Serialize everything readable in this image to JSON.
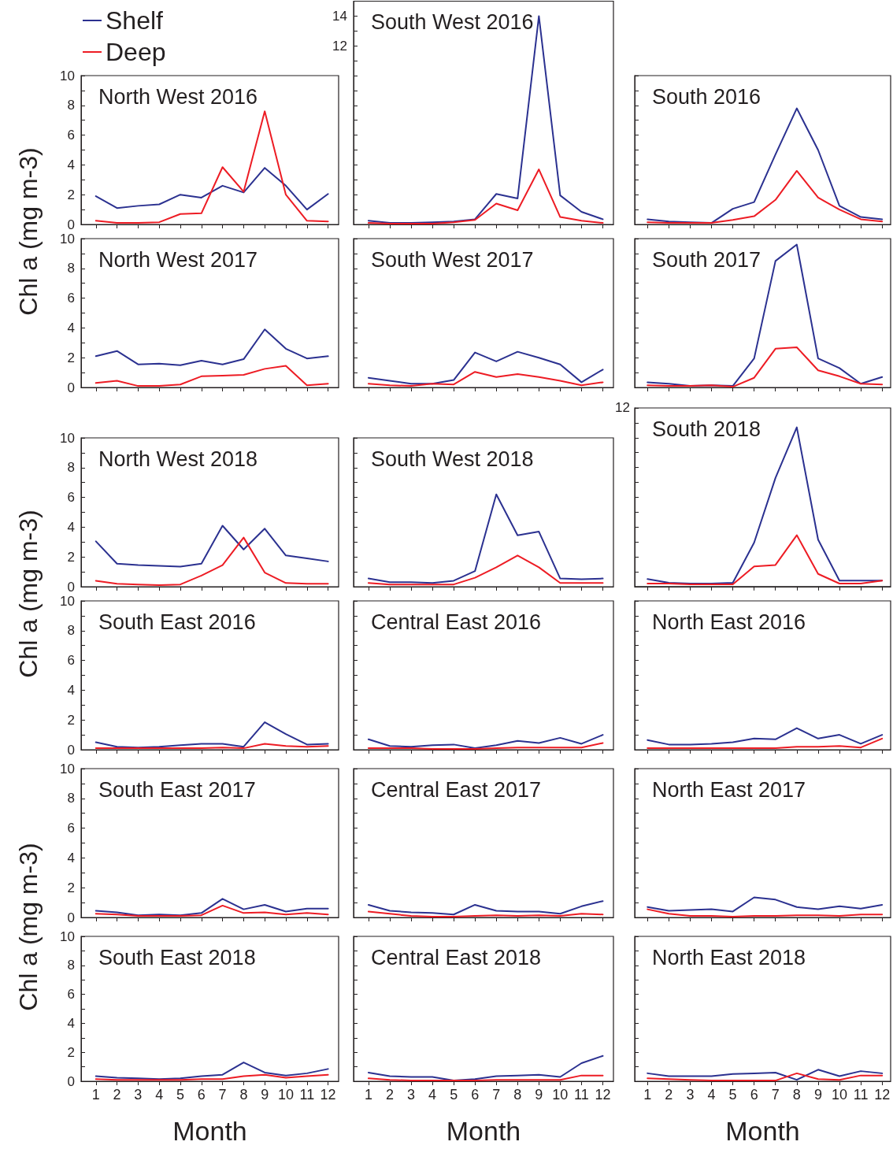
{
  "chart_data": [
    {
      "type": "line",
      "title": "North West 2016",
      "ylabel": "Chl a (mg m-3)",
      "legend": "top left",
      "x": [
        1,
        2,
        3,
        4,
        5,
        6,
        7,
        8,
        9,
        10,
        11,
        12
      ],
      "xlim": [
        0.3,
        12.5
      ],
      "xticks": [
        1,
        2,
        3,
        4,
        5,
        6,
        7,
        8,
        9,
        10,
        11,
        12
      ],
      "ylim": [
        0,
        10
      ],
      "yticks": [
        0,
        {
          "value": 1,
          "label": null
        },
        2,
        {
          "value": 3,
          "label": null
        },
        4,
        {
          "value": 5,
          "label": null
        },
        6,
        {
          "value": 7,
          "label": null
        },
        8,
        {
          "value": 9,
          "label": null
        },
        10
      ],
      "tick_labels": "y",
      "series": [
        {
          "name": "Shelf",
          "color": "#2b3190",
          "values": [
            1.9,
            1.1,
            1.25,
            1.35,
            2.0,
            1.8,
            2.6,
            2.15,
            3.8,
            2.6,
            1.0,
            2.05
          ]
        },
        {
          "name": "Deep",
          "color": "#ed1c24",
          "values": [
            0.25,
            0.1,
            0.1,
            0.15,
            0.7,
            0.75,
            3.85,
            2.2,
            7.6,
            2.0,
            0.25,
            0.2
          ]
        }
      ]
    },
    {
      "type": "line",
      "title": "South West 2016",
      "x": [
        1,
        2,
        3,
        4,
        5,
        6,
        7,
        8,
        9,
        10,
        11,
        12
      ],
      "xlim": [
        0.3,
        12.5
      ],
      "xticks": [
        1,
        2,
        3,
        4,
        5,
        6,
        7,
        8,
        9,
        10,
        11,
        12
      ],
      "ylim": [
        0,
        15
      ],
      "yticks": [
        {
          "value": 0,
          "label": null
        },
        {
          "value": 1,
          "label": null
        },
        {
          "value": 2,
          "label": null
        },
        {
          "value": 3,
          "label": null
        },
        {
          "value": 4,
          "label": null
        },
        {
          "value": 5,
          "label": null
        },
        {
          "value": 6,
          "label": null
        },
        {
          "value": 7,
          "label": null
        },
        {
          "value": 8,
          "label": null
        },
        {
          "value": 9,
          "label": null
        },
        {
          "value": 10,
          "label": null
        },
        {
          "value": 11,
          "label": null
        },
        12,
        {
          "value": 13,
          "label": null
        },
        14
      ],
      "tick_labels": "y",
      "series": [
        {
          "color": "#2b3190",
          "values": [
            0.25,
            0.1,
            0.1,
            0.15,
            0.2,
            0.35,
            2.05,
            1.75,
            14.0,
            1.95,
            0.85,
            0.35
          ]
        },
        {
          "color": "#ed1c24",
          "values": [
            0.1,
            0.05,
            0.05,
            0.05,
            0.15,
            0.3,
            1.4,
            0.95,
            3.7,
            0.5,
            0.25,
            0.1
          ]
        }
      ]
    },
    {
      "type": "line",
      "title": "South 2016",
      "x": [
        1,
        2,
        3,
        4,
        5,
        6,
        7,
        8,
        9,
        10,
        11,
        12
      ],
      "xlim": [
        0.4,
        12.4
      ],
      "xticks": [
        1,
        2,
        3,
        4,
        5,
        6,
        7,
        8,
        9,
        10,
        11,
        12
      ],
      "ylim": [
        0,
        10
      ],
      "yticks": [
        0,
        1,
        2,
        3,
        4,
        5,
        6,
        7,
        8,
        9,
        10
      ],
      "tick_labels": false,
      "series": [
        {
          "color": "#2b3190",
          "values": [
            0.35,
            0.2,
            0.15,
            0.1,
            1.05,
            1.5,
            4.7,
            7.8,
            5.0,
            1.25,
            0.5,
            0.35
          ]
        },
        {
          "color": "#ed1c24",
          "values": [
            0.15,
            0.1,
            0.1,
            0.1,
            0.3,
            0.55,
            1.65,
            3.6,
            1.8,
            1.0,
            0.35,
            0.2
          ]
        }
      ]
    },
    {
      "type": "line",
      "title": "North West 2017",
      "x": [
        1,
        2,
        3,
        4,
        5,
        6,
        7,
        8,
        9,
        10,
        11,
        12
      ],
      "xlim": [
        0.3,
        12.5
      ],
      "xticks": [
        1,
        2,
        3,
        4,
        5,
        6,
        7,
        8,
        9,
        10,
        11,
        12
      ],
      "ylim": [
        0,
        10
      ],
      "yticks": [
        0,
        {
          "value": 1,
          "label": null
        },
        2,
        {
          "value": 3,
          "label": null
        },
        4,
        {
          "value": 5,
          "label": null
        },
        6,
        {
          "value": 7,
          "label": null
        },
        8,
        {
          "value": 9,
          "label": null
        },
        10
      ],
      "tick_labels": "y",
      "series": [
        {
          "color": "#2b3190",
          "values": [
            2.1,
            2.45,
            1.55,
            1.6,
            1.5,
            1.8,
            1.55,
            1.9,
            3.9,
            2.6,
            1.95,
            2.1
          ]
        },
        {
          "color": "#ed1c24",
          "values": [
            0.3,
            0.45,
            0.1,
            0.1,
            0.2,
            0.75,
            0.8,
            0.85,
            1.25,
            1.45,
            0.15,
            0.25
          ]
        }
      ]
    },
    {
      "type": "line",
      "title": "South West 2017",
      "x": [
        1,
        2,
        3,
        4,
        5,
        6,
        7,
        8,
        9,
        10,
        11,
        12
      ],
      "xlim": [
        0.3,
        12.5
      ],
      "xticks": [
        1,
        2,
        3,
        4,
        5,
        6,
        7,
        8,
        9,
        10,
        11,
        12
      ],
      "ylim": [
        0,
        10
      ],
      "yticks": [
        0,
        1,
        2,
        3,
        4,
        5,
        6,
        7,
        8,
        9,
        10
      ],
      "tick_labels": false,
      "series": [
        {
          "color": "#2b3190",
          "values": [
            0.65,
            0.45,
            0.25,
            0.25,
            0.5,
            2.35,
            1.75,
            2.4,
            2.0,
            1.55,
            0.35,
            1.2
          ]
        },
        {
          "color": "#ed1c24",
          "values": [
            0.25,
            0.15,
            0.1,
            0.25,
            0.2,
            1.05,
            0.7,
            0.9,
            0.7,
            0.45,
            0.15,
            0.35
          ]
        }
      ]
    },
    {
      "type": "line",
      "title": "South 2017",
      "x": [
        1,
        2,
        3,
        4,
        5,
        6,
        7,
        8,
        9,
        10,
        11,
        12
      ],
      "xlim": [
        0.4,
        12.4
      ],
      "xticks": [
        1,
        2,
        3,
        4,
        5,
        6,
        7,
        8,
        9,
        10,
        11,
        12
      ],
      "ylim": [
        0,
        10
      ],
      "yticks": [
        0,
        1,
        2,
        3,
        4,
        5,
        6,
        7,
        8,
        9,
        10
      ],
      "tick_labels": false,
      "series": [
        {
          "color": "#2b3190",
          "values": [
            0.35,
            0.25,
            0.1,
            0.15,
            0.1,
            1.95,
            8.5,
            9.6,
            1.95,
            1.3,
            0.25,
            0.7
          ]
        },
        {
          "color": "#ed1c24",
          "values": [
            0.15,
            0.1,
            0.1,
            0.15,
            0.05,
            0.65,
            2.6,
            2.7,
            1.15,
            0.75,
            0.25,
            0.2
          ]
        }
      ]
    },
    {
      "type": "line",
      "title": "North West 2018",
      "ylabel": "Chl a (mg m-3)",
      "x": [
        1,
        2,
        3,
        4,
        5,
        6,
        7,
        8,
        9,
        10,
        11,
        12
      ],
      "xlim": [
        0.3,
        12.5
      ],
      "xticks": [
        1,
        2,
        3,
        4,
        5,
        6,
        7,
        8,
        9,
        10,
        11,
        12
      ],
      "ylim": [
        0,
        10
      ],
      "yticks": [
        0,
        {
          "value": 1,
          "label": null
        },
        2,
        {
          "value": 3,
          "label": null
        },
        4,
        {
          "value": 5,
          "label": null
        },
        6,
        {
          "value": 7,
          "label": null
        },
        8,
        {
          "value": 9,
          "label": null
        },
        10
      ],
      "tick_labels": "y",
      "series": [
        {
          "color": "#2b3190",
          "values": [
            3.05,
            1.55,
            1.45,
            1.4,
            1.35,
            1.55,
            4.1,
            2.5,
            3.9,
            2.1,
            1.9,
            1.7
          ]
        },
        {
          "color": "#ed1c24",
          "values": [
            0.4,
            0.2,
            0.15,
            0.1,
            0.15,
            0.75,
            1.45,
            3.3,
            0.95,
            0.25,
            0.2,
            0.2
          ]
        }
      ]
    },
    {
      "type": "line",
      "title": "South West 2018",
      "x": [
        1,
        2,
        3,
        4,
        5,
        6,
        7,
        8,
        9,
        10,
        11,
        12
      ],
      "xlim": [
        0.3,
        12.5
      ],
      "xticks": [
        1,
        2,
        3,
        4,
        5,
        6,
        7,
        8,
        9,
        10,
        11,
        12
      ],
      "ylim": [
        0,
        10
      ],
      "yticks": [
        0,
        1,
        2,
        3,
        4,
        5,
        6,
        7,
        8,
        9,
        10
      ],
      "tick_labels": false,
      "series": [
        {
          "color": "#2b3190",
          "values": [
            0.55,
            0.3,
            0.3,
            0.25,
            0.4,
            1.05,
            6.2,
            3.45,
            3.7,
            0.55,
            0.5,
            0.55
          ]
        },
        {
          "color": "#ed1c24",
          "values": [
            0.25,
            0.15,
            0.15,
            0.15,
            0.15,
            0.6,
            1.3,
            2.1,
            1.3,
            0.25,
            0.25,
            0.25
          ]
        }
      ]
    },
    {
      "type": "line",
      "title": "South 2018",
      "x": [
        1,
        2,
        3,
        4,
        5,
        6,
        7,
        8,
        9,
        10,
        11,
        12
      ],
      "xlim": [
        0.4,
        12.4
      ],
      "xticks": [
        1,
        2,
        3,
        4,
        5,
        6,
        7,
        8,
        9,
        10,
        11,
        12
      ],
      "ylim": [
        0,
        12
      ],
      "yticks": [
        0,
        1,
        2,
        3,
        4,
        5,
        6,
        7,
        8,
        9,
        10,
        11,
        12
      ],
      "tick_labels": false,
      "annotations": [
        "12"
      ],
      "series": [
        {
          "color": "#2b3190",
          "values": [
            0.5,
            0.25,
            0.2,
            0.2,
            0.25,
            2.95,
            7.3,
            10.7,
            3.15,
            0.4,
            0.4,
            0.4
          ]
        },
        {
          "color": "#ed1c24",
          "values": [
            0.2,
            0.2,
            0.15,
            0.15,
            0.15,
            1.35,
            1.45,
            3.45,
            0.85,
            0.2,
            0.2,
            0.4
          ]
        }
      ]
    },
    {
      "type": "line",
      "title": "South East 2016",
      "x": [
        1,
        2,
        3,
        4,
        5,
        6,
        7,
        8,
        9,
        10,
        11,
        12
      ],
      "xlim": [
        0.3,
        12.5
      ],
      "xticks": [
        1,
        2,
        3,
        4,
        5,
        6,
        7,
        8,
        9,
        10,
        11,
        12
      ],
      "ylim": [
        0,
        10
      ],
      "yticks": [
        0,
        {
          "value": 1,
          "label": null
        },
        2,
        {
          "value": 3,
          "label": null
        },
        4,
        {
          "value": 5,
          "label": null
        },
        6,
        {
          "value": 7,
          "label": null
        },
        8,
        {
          "value": 9,
          "label": null
        },
        10
      ],
      "tick_labels": "y",
      "series": [
        {
          "color": "#2b3190",
          "values": [
            0.5,
            0.2,
            0.15,
            0.2,
            0.3,
            0.4,
            0.4,
            0.2,
            1.85,
            1.05,
            0.35,
            0.4
          ]
        },
        {
          "color": "#ed1c24",
          "values": [
            0.1,
            0.1,
            0.1,
            0.1,
            0.1,
            0.1,
            0.15,
            0.1,
            0.4,
            0.25,
            0.2,
            0.25
          ]
        }
      ]
    },
    {
      "type": "line",
      "title": "Central East 2016",
      "x": [
        1,
        2,
        3,
        4,
        5,
        6,
        7,
        8,
        9,
        10,
        11,
        12
      ],
      "xlim": [
        0.3,
        12.5
      ],
      "xticks": [
        1,
        2,
        3,
        4,
        5,
        6,
        7,
        8,
        9,
        10,
        11,
        12
      ],
      "ylim": [
        0,
        10
      ],
      "yticks": [
        0,
        1,
        2,
        3,
        4,
        5,
        6,
        7,
        8,
        9,
        10
      ],
      "tick_labels": false,
      "series": [
        {
          "color": "#2b3190",
          "values": [
            0.7,
            0.25,
            0.2,
            0.3,
            0.35,
            0.1,
            0.3,
            0.6,
            0.45,
            0.8,
            0.4,
            1.0
          ]
        },
        {
          "color": "#ed1c24",
          "values": [
            0.1,
            0.1,
            0.1,
            0.05,
            0.05,
            0.05,
            0.1,
            0.15,
            0.15,
            0.15,
            0.15,
            0.45
          ]
        }
      ]
    },
    {
      "type": "line",
      "title": "North East 2016",
      "x": [
        1,
        2,
        3,
        4,
        5,
        6,
        7,
        8,
        9,
        10,
        11,
        12
      ],
      "xlim": [
        0.4,
        12.4
      ],
      "xticks": [
        1,
        2,
        3,
        4,
        5,
        6,
        7,
        8,
        9,
        10,
        11,
        12
      ],
      "ylim": [
        0,
        10
      ],
      "yticks": [
        0,
        1,
        2,
        3,
        4,
        5,
        6,
        7,
        8,
        9,
        10
      ],
      "tick_labels": false,
      "series": [
        {
          "color": "#2b3190",
          "values": [
            0.65,
            0.35,
            0.35,
            0.4,
            0.5,
            0.75,
            0.7,
            1.45,
            0.75,
            1.0,
            0.4,
            1.0
          ]
        },
        {
          "color": "#ed1c24",
          "values": [
            0.1,
            0.1,
            0.1,
            0.1,
            0.1,
            0.1,
            0.1,
            0.2,
            0.2,
            0.25,
            0.15,
            0.75
          ]
        }
      ]
    },
    {
      "type": "line",
      "title": "South East 2017",
      "ylabel": "Chl a (mg m-3)",
      "x": [
        1,
        2,
        3,
        4,
        5,
        6,
        7,
        8,
        9,
        10,
        11,
        12
      ],
      "xlim": [
        0.3,
        12.5
      ],
      "xticks": [
        1,
        2,
        3,
        4,
        5,
        6,
        7,
        8,
        9,
        10,
        11,
        12
      ],
      "ylim": [
        0,
        10
      ],
      "yticks": [
        0,
        {
          "value": 1,
          "label": null
        },
        2,
        {
          "value": 3,
          "label": null
        },
        4,
        {
          "value": 5,
          "label": null
        },
        6,
        {
          "value": 7,
          "label": null
        },
        8,
        {
          "value": 9,
          "label": null
        },
        10
      ],
      "tick_labels": "y",
      "series": [
        {
          "color": "#2b3190",
          "values": [
            0.45,
            0.35,
            0.15,
            0.2,
            0.15,
            0.3,
            1.25,
            0.55,
            0.85,
            0.4,
            0.6,
            0.6
          ]
        },
        {
          "color": "#ed1c24",
          "values": [
            0.25,
            0.2,
            0.1,
            0.1,
            0.1,
            0.15,
            0.8,
            0.3,
            0.35,
            0.2,
            0.3,
            0.2
          ]
        }
      ]
    },
    {
      "type": "line",
      "title": "Central East 2017",
      "x": [
        1,
        2,
        3,
        4,
        5,
        6,
        7,
        8,
        9,
        10,
        11,
        12
      ],
      "xlim": [
        0.3,
        12.5
      ],
      "xticks": [
        1,
        2,
        3,
        4,
        5,
        6,
        7,
        8,
        9,
        10,
        11,
        12
      ],
      "ylim": [
        0,
        10
      ],
      "yticks": [
        0,
        1,
        2,
        3,
        4,
        5,
        6,
        7,
        8,
        9,
        10
      ],
      "tick_labels": false,
      "series": [
        {
          "color": "#2b3190",
          "values": [
            0.85,
            0.45,
            0.35,
            0.3,
            0.2,
            0.85,
            0.45,
            0.4,
            0.4,
            0.25,
            0.75,
            1.1
          ]
        },
        {
          "color": "#ed1c24",
          "values": [
            0.4,
            0.25,
            0.1,
            0.05,
            0.05,
            0.1,
            0.15,
            0.1,
            0.15,
            0.1,
            0.25,
            0.2
          ]
        }
      ]
    },
    {
      "type": "line",
      "title": "North East 2017",
      "x": [
        1,
        2,
        3,
        4,
        5,
        6,
        7,
        8,
        9,
        10,
        11,
        12
      ],
      "xlim": [
        0.4,
        12.4
      ],
      "xticks": [
        1,
        2,
        3,
        4,
        5,
        6,
        7,
        8,
        9,
        10,
        11,
        12
      ],
      "ylim": [
        0,
        10
      ],
      "yticks": [
        0,
        1,
        2,
        3,
        4,
        5,
        6,
        7,
        8,
        9,
        10
      ],
      "tick_labels": false,
      "series": [
        {
          "color": "#2b3190",
          "values": [
            0.7,
            0.45,
            0.5,
            0.55,
            0.4,
            1.35,
            1.2,
            0.7,
            0.55,
            0.75,
            0.6,
            0.85
          ]
        },
        {
          "color": "#ed1c24",
          "values": [
            0.55,
            0.25,
            0.1,
            0.1,
            0.05,
            0.1,
            0.1,
            0.15,
            0.15,
            0.1,
            0.2,
            0.2
          ]
        }
      ]
    },
    {
      "type": "line",
      "title": "South East 2018",
      "xlabel": "Month",
      "x": [
        1,
        2,
        3,
        4,
        5,
        6,
        7,
        8,
        9,
        10,
        11,
        12
      ],
      "xlim": [
        0.3,
        12.5
      ],
      "xticks": [
        1,
        2,
        3,
        4,
        5,
        6,
        7,
        8,
        9,
        10,
        11,
        12
      ],
      "ylim": [
        0,
        10
      ],
      "yticks": [
        0,
        {
          "value": 1,
          "label": null
        },
        2,
        {
          "value": 3,
          "label": null
        },
        4,
        {
          "value": 5,
          "label": null
        },
        6,
        {
          "value": 7,
          "label": null
        },
        8,
        {
          "value": 9,
          "label": null
        },
        10
      ],
      "series": [
        {
          "color": "#2b3190",
          "values": [
            0.35,
            0.25,
            0.2,
            0.15,
            0.2,
            0.35,
            0.45,
            1.3,
            0.6,
            0.4,
            0.55,
            0.85
          ]
        },
        {
          "color": "#ed1c24",
          "values": [
            0.15,
            0.1,
            0.1,
            0.1,
            0.1,
            0.15,
            0.15,
            0.35,
            0.45,
            0.25,
            0.35,
            0.45
          ]
        }
      ]
    },
    {
      "type": "line",
      "title": "Central East 2018",
      "xlabel": "Month",
      "x": [
        1,
        2,
        3,
        4,
        5,
        6,
        7,
        8,
        9,
        10,
        11,
        12
      ],
      "xlim": [
        0.3,
        12.5
      ],
      "xticks": [
        1,
        2,
        3,
        4,
        5,
        6,
        7,
        8,
        9,
        10,
        11,
        12
      ],
      "ylim": [
        0,
        10
      ],
      "yticks": [
        0,
        1,
        2,
        3,
        4,
        5,
        6,
        7,
        8,
        9,
        10
      ],
      "tick_labels": "x",
      "series": [
        {
          "color": "#2b3190",
          "values": [
            0.6,
            0.35,
            0.3,
            0.3,
            0.05,
            0.15,
            0.35,
            0.4,
            0.45,
            0.3,
            1.25,
            1.75
          ]
        },
        {
          "color": "#ed1c24",
          "values": [
            0.2,
            0.1,
            0.05,
            0.05,
            0.05,
            0.05,
            0.1,
            0.1,
            0.1,
            0.1,
            0.4,
            0.4
          ]
        }
      ]
    },
    {
      "type": "line",
      "title": "North East 2018",
      "xlabel": "Month",
      "x": [
        1,
        2,
        3,
        4,
        5,
        6,
        7,
        8,
        9,
        10,
        11,
        12
      ],
      "xlim": [
        0.4,
        12.4
      ],
      "xticks": [
        1,
        2,
        3,
        4,
        5,
        6,
        7,
        8,
        9,
        10,
        11,
        12
      ],
      "ylim": [
        0,
        10
      ],
      "yticks": [
        0,
        1,
        2,
        3,
        4,
        5,
        6,
        7,
        8,
        9,
        10
      ],
      "tick_labels": "x",
      "series": [
        {
          "color": "#2b3190",
          "values": [
            0.55,
            0.35,
            0.35,
            0.35,
            0.5,
            0.55,
            0.6,
            0.1,
            0.8,
            0.35,
            0.7,
            0.55
          ]
        },
        {
          "color": "#ed1c24",
          "values": [
            0.2,
            0.15,
            0.1,
            0.05,
            0.05,
            0.05,
            0.05,
            0.55,
            0.15,
            0.1,
            0.4,
            0.4
          ]
        }
      ]
    }
  ]
}
